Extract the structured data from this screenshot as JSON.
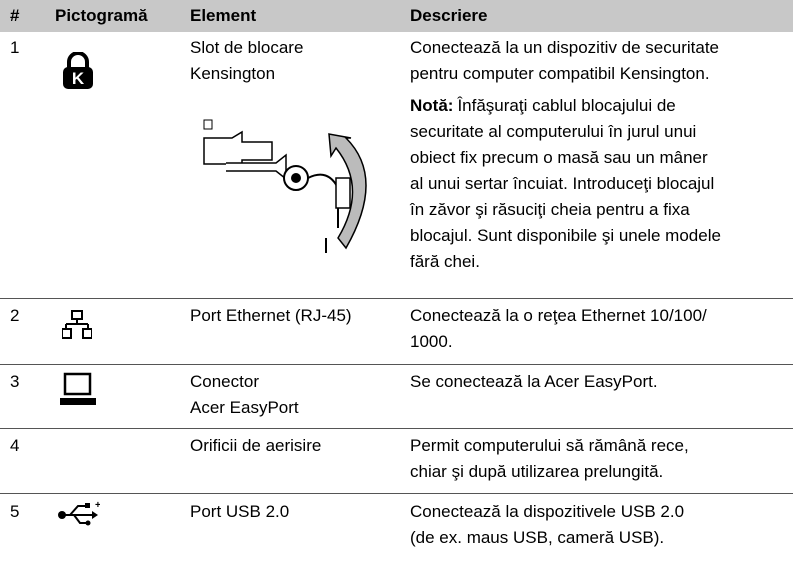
{
  "table": {
    "header": [
      "#",
      "Pictogramă",
      "Element",
      "Descriere"
    ],
    "rows": [
      {
        "num": "1",
        "element": [
          "Slot de blocare",
          "Kensington"
        ],
        "description": [
          "Conectează la un dispozitiv de securitate",
          "pentru computer compatibil Kensington."
        ],
        "note": {
          "label": "Notă:",
          "lines": [
            "Înfăşuraţi cablul blocajului de",
            "securitate al computerului în jurul unui",
            "obiect fix precum o masă sau un mâner",
            "al unui sertar încuiat. Introduceţi blocajul",
            "în zăvor şi răsuciţi cheia pentru a fixa",
            "blocajul. Sunt disponibile şi unele modele",
            "fără chei."
          ]
        }
      },
      {
        "num": "2",
        "element": [
          "Port Ethernet (RJ-45)"
        ],
        "description": [
          "Conectează la o reţea Ethernet 10/100/",
          "1000."
        ]
      },
      {
        "num": "3",
        "element": [
          "Conector",
          "Acer EasyPort"
        ],
        "description": [
          "Se conectează la Acer EasyPort."
        ]
      },
      {
        "num": "4",
        "element": [
          "Orificii de aerisire"
        ],
        "description": [
          "Permit computerului să rămână rece,",
          "chiar şi după utilizarea prelungită."
        ]
      },
      {
        "num": "5",
        "element": [
          "Port USB 2.0"
        ],
        "description": [
          "Conectează la dispozitivele USB 2.0",
          "(de ex. maus USB, cameră USB)."
        ]
      }
    ]
  }
}
